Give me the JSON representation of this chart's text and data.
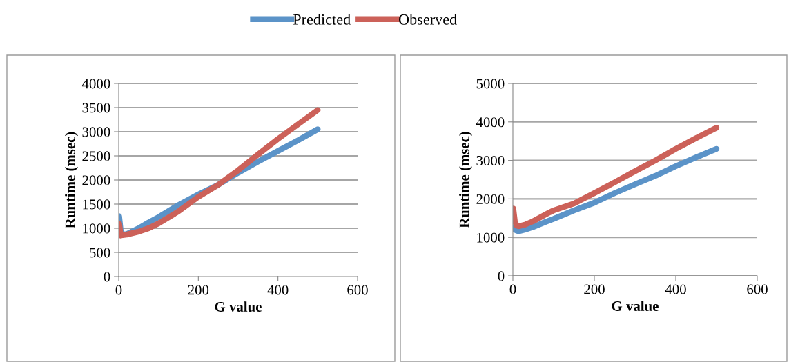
{
  "chart_data": [
    {
      "type": "line",
      "xlabel": "G value",
      "ylabel": "Runtime (msec)",
      "xlim": [
        0,
        600
      ],
      "xticks": [
        0,
        200,
        400,
        600
      ],
      "ylim": [
        0,
        4000
      ],
      "yticks": [
        0,
        500,
        1000,
        1500,
        2000,
        2500,
        3000,
        3500,
        4000
      ],
      "grid": "y",
      "legend": "top",
      "marker": "none",
      "line_style": "solid",
      "series": [
        {
          "name": "Predicted",
          "color": "#5b93c8",
          "x": [
            1,
            5,
            10,
            20,
            50,
            75,
            100,
            150,
            200,
            250,
            300,
            350,
            400,
            450,
            500
          ],
          "values": [
            1250,
            950,
            870,
            880,
            1000,
            1120,
            1230,
            1480,
            1700,
            1900,
            2150,
            2380,
            2600,
            2820,
            3050
          ]
        },
        {
          "name": "Observed",
          "color": "#cc6159",
          "x": [
            1,
            5,
            10,
            20,
            50,
            75,
            100,
            150,
            200,
            250,
            300,
            350,
            400,
            450,
            500
          ],
          "values": [
            1100,
            850,
            860,
            870,
            930,
            1000,
            1100,
            1350,
            1650,
            1900,
            2200,
            2530,
            2850,
            3150,
            3450
          ]
        }
      ]
    },
    {
      "type": "line",
      "xlabel": "G value",
      "ylabel": "Runtime (msec)",
      "xlim": [
        0,
        600
      ],
      "xticks": [
        0,
        200,
        400,
        600
      ],
      "ylim": [
        0,
        5000
      ],
      "yticks": [
        0,
        1000,
        2000,
        3000,
        4000,
        5000
      ],
      "grid": "y",
      "legend": "top",
      "marker": "none",
      "line_style": "solid",
      "series": [
        {
          "name": "Predicted",
          "color": "#5b93c8",
          "x": [
            1,
            5,
            10,
            15,
            30,
            50,
            80,
            100,
            150,
            200,
            250,
            300,
            350,
            400,
            450,
            500
          ],
          "values": [
            1250,
            1200,
            1170,
            1160,
            1200,
            1270,
            1400,
            1480,
            1700,
            1900,
            2150,
            2380,
            2600,
            2850,
            3080,
            3300
          ]
        },
        {
          "name": "Observed",
          "color": "#cc6159",
          "x": [
            1,
            5,
            10,
            15,
            30,
            50,
            90,
            100,
            150,
            200,
            250,
            300,
            350,
            400,
            450,
            500
          ],
          "values": [
            1750,
            1400,
            1300,
            1290,
            1330,
            1420,
            1650,
            1700,
            1880,
            2150,
            2430,
            2720,
            3000,
            3300,
            3580,
            3850
          ]
        }
      ]
    }
  ]
}
